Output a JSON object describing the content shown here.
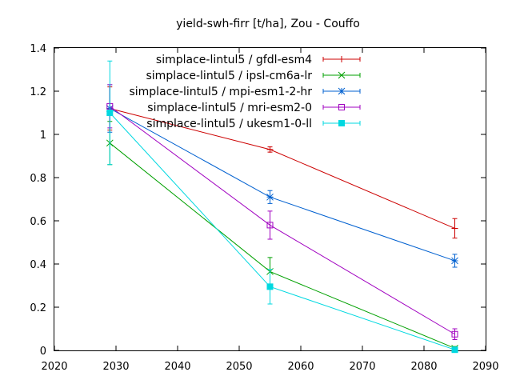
{
  "chart_data": {
    "type": "line",
    "title": "yield-swh-firr [t/ha], Zou - Couffo",
    "xlabel": "",
    "ylabel": "",
    "xlim": [
      2020,
      2090
    ],
    "ylim": [
      0,
      1.4
    ],
    "xticks": [
      2020,
      2030,
      2040,
      2050,
      2060,
      2070,
      2080,
      2090
    ],
    "yticks": [
      0,
      0.2,
      0.4,
      0.6,
      0.8,
      1,
      1.2,
      1.4
    ],
    "xtick_labels": [
      "2020",
      "2030",
      "2040",
      "2050",
      "2060",
      "2070",
      "2080",
      "2090"
    ],
    "ytick_labels": [
      "0",
      "0.2",
      "0.4",
      "0.6",
      "0.8",
      "1",
      "1.2",
      "1.4"
    ],
    "grid": false,
    "legend_position": "top-right",
    "series": [
      {
        "name": "simplace-lintul5 / gfdl-esm4",
        "color": "#cc0000",
        "marker": "plus",
        "points": [
          {
            "x": 2029,
            "y": 1.12,
            "err": 0.1
          },
          {
            "x": 2055,
            "y": 0.93,
            "err": 0.012
          },
          {
            "x": 2085,
            "y": 0.565,
            "err": 0.045
          }
        ]
      },
      {
        "name": "simplace-lintul5 / ipsl-cm6a-lr",
        "color": "#00a000",
        "marker": "cross",
        "points": [
          {
            "x": 2029,
            "y": 0.96,
            "err": 0.1
          },
          {
            "x": 2055,
            "y": 0.365,
            "err": 0.065
          },
          {
            "x": 2085,
            "y": 0.01,
            "err": 0.008
          }
        ]
      },
      {
        "name": "simplace-lintul5 / mpi-esm1-2-hr",
        "color": "#0060d0",
        "marker": "star",
        "points": [
          {
            "x": 2029,
            "y": 1.12,
            "err": 0.11
          },
          {
            "x": 2055,
            "y": 0.71,
            "err": 0.03
          },
          {
            "x": 2085,
            "y": 0.415,
            "err": 0.03
          }
        ]
      },
      {
        "name": "simplace-lintul5 / mri-esm2-0",
        "color": "#a000c0",
        "marker": "square-open",
        "points": [
          {
            "x": 2029,
            "y": 1.13,
            "err": 0.1
          },
          {
            "x": 2055,
            "y": 0.58,
            "err": 0.065
          },
          {
            "x": 2085,
            "y": 0.075,
            "err": 0.025
          }
        ]
      },
      {
        "name": "simplace-lintul5 / ukesm1-0-ll",
        "color": "#00d8e0",
        "marker": "square-filled",
        "points": [
          {
            "x": 2029,
            "y": 1.1,
            "err": 0.24
          },
          {
            "x": 2055,
            "y": 0.295,
            "err": 0.08
          },
          {
            "x": 2085,
            "y": 0.003,
            "err": 0.004
          }
        ]
      }
    ]
  }
}
